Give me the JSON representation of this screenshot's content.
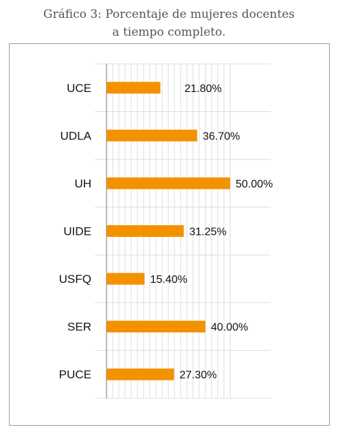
{
  "chart_data": {
    "type": "bar",
    "orientation": "horizontal",
    "title_lines": [
      "Gráfico 3: Porcentaje de mujeres docentes",
      "a tiempo completo."
    ],
    "categories": [
      "UCE",
      "UDLA",
      "UH",
      "UIDE",
      "USFQ",
      "SER",
      "PUCE"
    ],
    "values": [
      21.8,
      36.7,
      50.0,
      31.25,
      15.4,
      40.0,
      27.3
    ],
    "value_labels": [
      "21.80%",
      "36.70%",
      "50.00%",
      "31.25%",
      "15.40%",
      "40.00%",
      "27.30%"
    ],
    "xlim": [
      0,
      50
    ],
    "grid": true,
    "legend": "none",
    "bar_color": "#f39200"
  }
}
